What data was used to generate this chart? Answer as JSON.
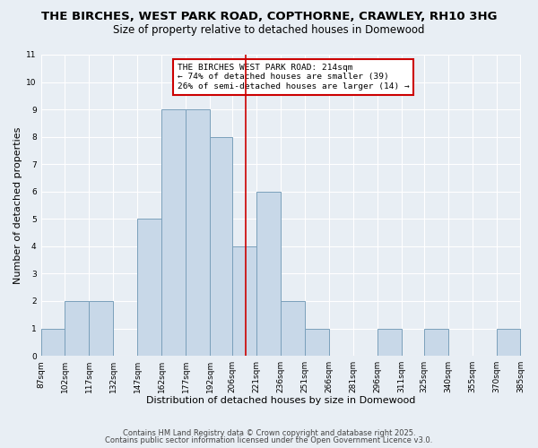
{
  "title1": "THE BIRCHES, WEST PARK ROAD, COPTHORNE, CRAWLEY, RH10 3HG",
  "title2": "Size of property relative to detached houses in Domewood",
  "xlabel": "Distribution of detached houses by size in Domewood",
  "ylabel": "Number of detached properties",
  "bin_labels": [
    "87sqm",
    "102sqm",
    "117sqm",
    "132sqm",
    "147sqm",
    "162sqm",
    "177sqm",
    "192sqm",
    "206sqm",
    "221sqm",
    "236sqm",
    "251sqm",
    "266sqm",
    "281sqm",
    "296sqm",
    "311sqm",
    "325sqm",
    "340sqm",
    "355sqm",
    "370sqm",
    "385sqm"
  ],
  "bar_counts": [
    1,
    2,
    2,
    0,
    5,
    9,
    9,
    8,
    4,
    6,
    2,
    1,
    0,
    0,
    1,
    0,
    1,
    0,
    0,
    1
  ],
  "bin_edges": [
    87,
    102,
    117,
    132,
    147,
    162,
    177,
    192,
    206,
    221,
    236,
    251,
    266,
    281,
    296,
    311,
    325,
    340,
    355,
    370,
    385
  ],
  "bar_color": "#c8d8e8",
  "bar_edgecolor": "#7aa0bb",
  "vline_x": 214,
  "vline_color": "#cc0000",
  "annotation_text": "THE BIRCHES WEST PARK ROAD: 214sqm\n← 74% of detached houses are smaller (39)\n26% of semi-detached houses are larger (14) →",
  "annotation_box_edgecolor": "#cc0000",
  "ylim": [
    0,
    11
  ],
  "yticks": [
    0,
    1,
    2,
    3,
    4,
    5,
    6,
    7,
    8,
    9,
    10,
    11
  ],
  "background_color": "#e8eef4",
  "footer1": "Contains HM Land Registry data © Crown copyright and database right 2025.",
  "footer2": "Contains public sector information licensed under the Open Government Licence v3.0.",
  "title_fontsize": 9.5,
  "subtitle_fontsize": 8.5,
  "tick_label_fontsize": 6.5,
  "axis_label_fontsize": 8,
  "ylabel_fontsize": 8
}
